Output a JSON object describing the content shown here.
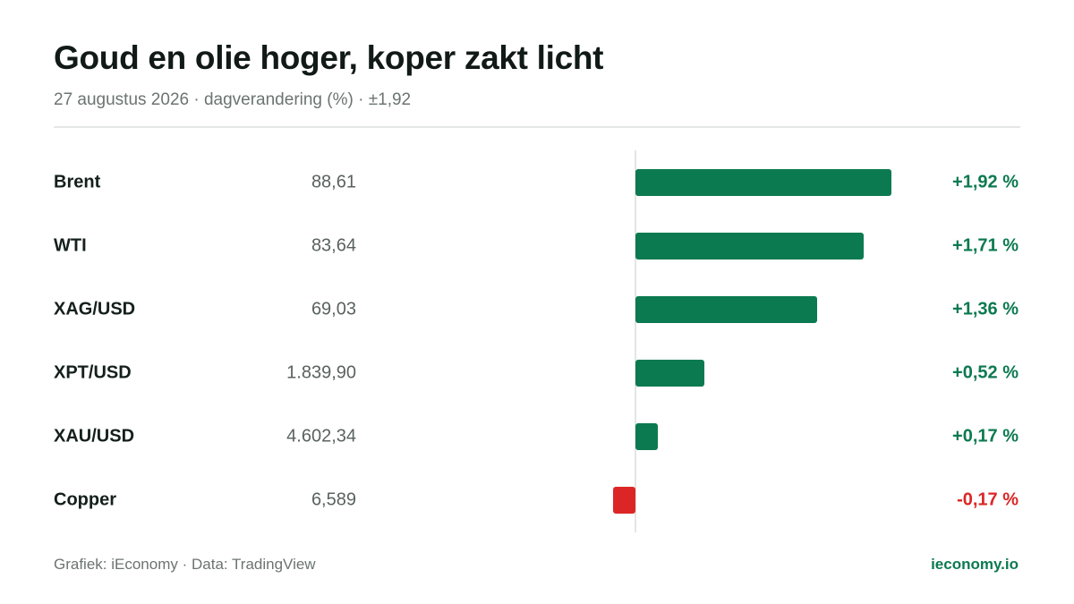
{
  "header": {
    "title": "Goud en olie hoger, koper zakt licht",
    "subtitle": "27 augustus 2026 · dagverandering (%) · ±1,92"
  },
  "footer": {
    "credit": "Grafiek: iEconomy · Data: TradingView",
    "site": "ieconomy.io"
  },
  "colors": {
    "positive": "#0c7a50",
    "negative": "#dc2626"
  },
  "chart_data": {
    "type": "bar",
    "orientation": "horizontal",
    "title": "Goud en olie hoger, koper zakt licht",
    "categories": [
      "Brent",
      "WTI",
      "XAG/USD",
      "XPT/USD",
      "XAU/USD",
      "Copper"
    ],
    "prices": [
      "88,61",
      "83,64",
      "69,03",
      "1.839,90",
      "4.602,34",
      "6,589"
    ],
    "change_labels": [
      "+1,92 %",
      "+1,71 %",
      "+1,36 %",
      "+0,52 %",
      "+0,17 %",
      "-0,17 %"
    ],
    "series": [
      {
        "values": [
          1.92,
          1.71,
          1.36,
          0.52,
          0.17,
          -0.17
        ]
      }
    ],
    "xlim": [
      -1.92,
      1.92
    ],
    "grid": false,
    "zero_line": true
  }
}
